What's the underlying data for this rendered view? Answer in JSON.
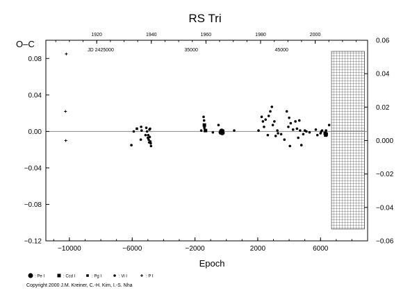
{
  "chart_data": {
    "type": "scatter",
    "title": "RS  Tri",
    "ylabel": "O–C",
    "xlabel": "Epoch",
    "xlim": [
      -11500,
      9000
    ],
    "ylim": [
      -0.12,
      0.1
    ],
    "right_ylim": [
      -0.06,
      0.06
    ],
    "x_ticks": [
      -10000,
      -6000,
      -2000,
      2000,
      6000
    ],
    "x_tick_labels": [
      "−10000",
      "−6000",
      "−2000",
      "2000",
      "6000"
    ],
    "y_ticks": [
      -0.12,
      -0.08,
      -0.04,
      0.0,
      0.04,
      0.08
    ],
    "y_tick_labels": [
      "−0.12",
      "−0.08",
      "−0.04",
      "0.00",
      "0.04",
      "0.08"
    ],
    "right_y_ticks": [
      -0.06,
      -0.04,
      -0.02,
      0.0,
      0.02,
      0.04,
      0.06
    ],
    "right_y_tick_labels": [
      "−0.06",
      "−0.04",
      "−0.02",
      "0.000",
      "0.02",
      "0.04",
      "0.06"
    ],
    "top_year_axis": {
      "labels": [
        "1920",
        "1940",
        "1960",
        "1980",
        "2000"
      ],
      "epochs": [
        -8260,
        -4780,
        -1300,
        2180,
        5660
      ]
    },
    "jd_labels": [
      {
        "text": "JD 2425000",
        "epoch": -8000
      },
      {
        "text": "35000",
        "epoch": -2240
      },
      {
        "text": "45000",
        "epoch": 3520
      }
    ],
    "zero_line": 0.0,
    "hatched_region": {
      "from": 6700,
      "to": 8800
    },
    "series": [
      {
        "name": "Pe I",
        "marker": "large-circle",
        "points": [
          [
            -340,
            -0.001
          ],
          [
            -300,
            0.0005
          ],
          [
            -260,
            -0.0015
          ]
        ]
      },
      {
        "name": "Ccd I",
        "marker": "square",
        "points": [
          [
            -1400,
            0.007
          ],
          [
            -1330,
            0.001
          ],
          [
            6300,
            -0.002
          ],
          [
            6330,
            -0.004
          ],
          [
            6360,
            -0.003
          ]
        ]
      },
      {
        "name": "Pg I",
        "marker": "small-square",
        "points": [
          [
            -5700,
            0.003
          ]
        ]
      },
      {
        "name": "Vi I",
        "marker": "dot",
        "points": [
          [
            -6050,
            -0.015
          ],
          [
            -5900,
            0.0
          ],
          [
            -5450,
            -0.009
          ],
          [
            -5430,
            0.005
          ],
          [
            -5400,
            0.001
          ],
          [
            -5150,
            -0.004
          ],
          [
            -5100,
            0.004
          ],
          [
            -5050,
            0.0
          ],
          [
            -5000,
            -0.007
          ],
          [
            -4980,
            -0.004
          ],
          [
            -4950,
            -0.009
          ],
          [
            -4920,
            -0.012
          ],
          [
            -4900,
            0.002
          ],
          [
            -4880,
            -0.006
          ],
          [
            -4860,
            0.003
          ],
          [
            -4840,
            -0.011
          ],
          [
            -4820,
            -0.013
          ],
          [
            -4800,
            -0.016
          ],
          [
            -1600,
            0.001
          ],
          [
            -1450,
            0.016
          ],
          [
            -1420,
            0.012
          ],
          [
            -1400,
            0.004
          ],
          [
            -1300,
            0.001
          ],
          [
            -860,
            -0.001
          ],
          [
            -500,
            0.007
          ],
          [
            -200,
            0.001
          ],
          [
            500,
            0.001
          ],
          [
            2050,
            0.001
          ],
          [
            2250,
            0.016
          ],
          [
            2330,
            0.011
          ],
          [
            2400,
            0.005
          ],
          [
            2500,
            0.013
          ],
          [
            2640,
            -0.004
          ],
          [
            2700,
            0.017
          ],
          [
            2800,
            0.022
          ],
          [
            2900,
            0.027
          ],
          [
            2960,
            0.007
          ],
          [
            3060,
            0.011
          ],
          [
            3140,
            -0.005
          ],
          [
            3250,
            0.001
          ],
          [
            3290,
            -0.002
          ],
          [
            3490,
            -0.003
          ],
          [
            3700,
            -0.009
          ],
          [
            3850,
            0.022
          ],
          [
            3950,
            0.005
          ],
          [
            4000,
            0.015
          ],
          [
            4050,
            -0.016
          ],
          [
            4100,
            0.009
          ],
          [
            4250,
            0.002
          ],
          [
            4400,
            0.011
          ],
          [
            4500,
            0.003
          ],
          [
            4580,
            -0.007
          ],
          [
            4650,
            0.012
          ],
          [
            4700,
            0.001
          ],
          [
            4780,
            -0.015
          ],
          [
            4900,
            -0.003
          ],
          [
            5000,
            0.001
          ],
          [
            5100,
            0.0
          ],
          [
            5300,
            -0.001
          ],
          [
            5700,
            0.002
          ],
          [
            5800,
            -0.004
          ],
          [
            6000,
            -0.002
          ],
          [
            6050,
            0.0
          ],
          [
            6100,
            0.001
          ],
          [
            6350,
            0.001
          ],
          [
            6550,
            0.007
          ]
        ]
      },
      {
        "name": "P I",
        "marker": "plus",
        "points": [
          [
            -10250,
            0.022
          ],
          [
            -10230,
            -0.01
          ],
          [
            -10200,
            0.085
          ]
        ]
      }
    ]
  },
  "legend": [
    {
      "marker": "large-circle",
      "label": ": Pe I"
    },
    {
      "marker": "square",
      "label": ": Ccd I"
    },
    {
      "marker": "small-square",
      "label": ": Pg I"
    },
    {
      "marker": "dot",
      "label": ": Vi I"
    },
    {
      "marker": "plus",
      "label": ": P I"
    }
  ],
  "copyright": "Copyright 2000 J.M. Kreiner, C.-H. Kim, I.-S. Nha"
}
